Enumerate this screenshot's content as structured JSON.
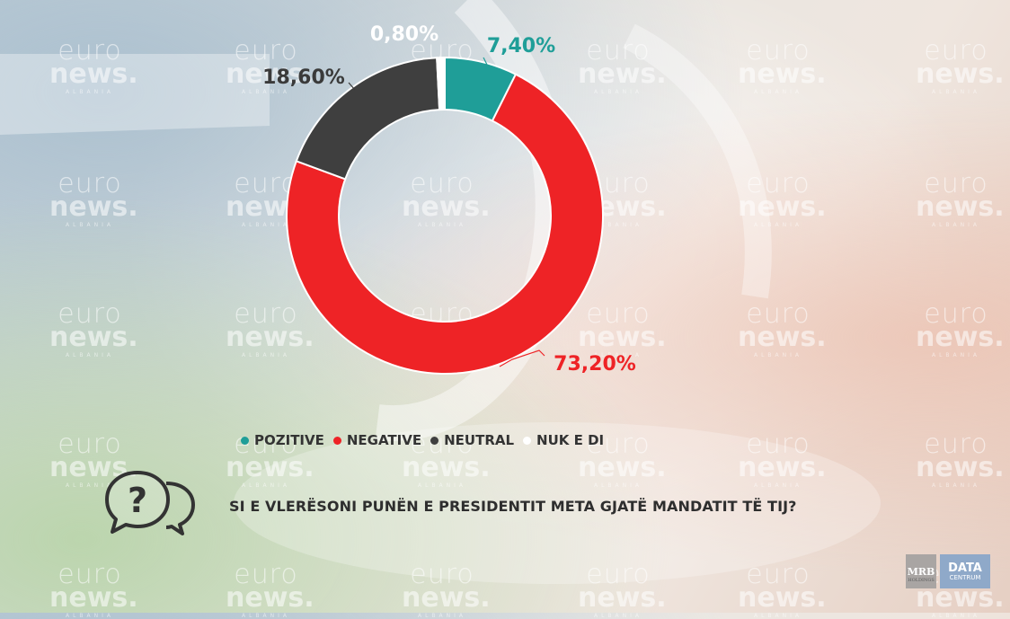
{
  "watermark": {
    "line1": "euro",
    "line2": "news.",
    "line3": "ALBANIA"
  },
  "chart_data": {
    "type": "pie",
    "variant": "donut",
    "categories": [
      "POZITIVE",
      "NEGATIVE",
      "NEUTRAL",
      "NUK E DI"
    ],
    "values": [
      7.4,
      73.2,
      18.6,
      0.8
    ],
    "data_labels": [
      "7,40%",
      "73,20%",
      "18,60%",
      "0,80%"
    ],
    "colors": [
      "#1f9e98",
      "#ee2326",
      "#3f3f3f",
      "#ffffff"
    ],
    "label_colors": [
      "#1f9e98",
      "#ee2326",
      "#3a3a3a",
      "#ffffff"
    ],
    "start": "top, clockwise",
    "legend_position": "bottom"
  },
  "question": {
    "text": "SI E VLERËSONI PUNËN E PRESIDENTIT META GJATË MANDATIT TË TIJ?",
    "icon": "speech-bubbles-question-icon"
  },
  "logos": {
    "mrb": {
      "line1": "MRB",
      "line2": "HOLDINGS"
    },
    "data": {
      "line1": "DATA",
      "line2": "CENTRUM"
    }
  }
}
